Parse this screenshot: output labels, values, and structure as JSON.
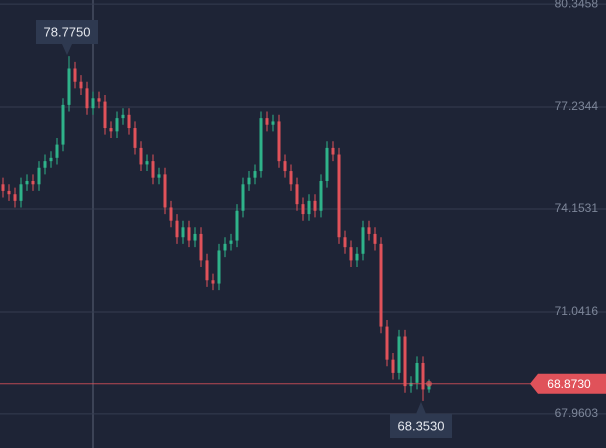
{
  "chart_data": {
    "type": "candlestick",
    "ylim": [
      66.93,
      80.47
    ],
    "yticks": [
      80.3458,
      77.2344,
      74.1531,
      71.0416,
      67.9603
    ],
    "grid": true,
    "up_color": "#2fb38a",
    "down_color": "#e0525a",
    "open": [
      74.9,
      74.7,
      74.6,
      74.4,
      74.9,
      75.0,
      74.9,
      75.4,
      75.6,
      75.7,
      76.1,
      77.3,
      78.4,
      78.0,
      77.8,
      77.2,
      77.5,
      77.4,
      76.6,
      76.5,
      76.9,
      77.0,
      76.6,
      76.0,
      75.5,
      75.6,
      75.1,
      75.2,
      74.2,
      73.8,
      73.3,
      73.6,
      73.2,
      73.4,
      72.6,
      72.0,
      71.9,
      72.9,
      73.1,
      73.2,
      74.1,
      74.9,
      75.1,
      75.3,
      76.9,
      76.7,
      76.8,
      75.6,
      75.3,
      74.9,
      74.3,
      74.0,
      74.4,
      74.1,
      75.0,
      76.0,
      75.8,
      73.3,
      73.0,
      72.6,
      72.8,
      73.6,
      73.4,
      73.1,
      70.6,
      69.6,
      69.2,
      70.3,
      68.8,
      68.9,
      69.5,
      68.7
    ],
    "high": [
      75.1,
      74.9,
      74.8,
      75.1,
      75.2,
      75.2,
      75.6,
      75.8,
      75.9,
      76.3,
      77.5,
      78.775,
      78.6,
      78.2,
      78.0,
      77.7,
      77.7,
      77.6,
      76.8,
      77.1,
      77.2,
      77.2,
      76.8,
      76.2,
      75.8,
      75.8,
      75.4,
      75.4,
      74.4,
      74.0,
      73.8,
      73.8,
      73.6,
      73.6,
      72.8,
      72.2,
      73.1,
      73.3,
      73.4,
      74.3,
      75.1,
      75.3,
      75.5,
      77.1,
      77.1,
      77.0,
      77.0,
      75.8,
      75.5,
      75.1,
      74.5,
      74.6,
      74.6,
      75.2,
      76.2,
      76.2,
      76.0,
      73.5,
      73.2,
      73.0,
      73.8,
      73.8,
      73.6,
      73.3,
      70.8,
      69.8,
      70.5,
      70.5,
      69.1,
      69.7,
      69.7,
      69.0
    ],
    "low": [
      74.5,
      74.4,
      74.2,
      74.2,
      74.7,
      74.7,
      74.7,
      75.2,
      75.4,
      75.5,
      75.9,
      77.1,
      77.8,
      77.6,
      77.0,
      77.0,
      77.2,
      76.4,
      76.3,
      76.3,
      76.7,
      76.4,
      75.8,
      75.3,
      75.3,
      74.9,
      74.9,
      74.0,
      73.6,
      73.1,
      73.1,
      73.0,
      73.0,
      72.4,
      71.8,
      71.7,
      71.7,
      72.7,
      72.9,
      73.0,
      73.9,
      74.7,
      74.9,
      75.1,
      76.5,
      76.5,
      75.4,
      75.1,
      74.7,
      74.1,
      73.8,
      73.8,
      73.9,
      73.9,
      74.8,
      75.6,
      73.1,
      72.8,
      72.4,
      72.4,
      72.6,
      73.2,
      72.9,
      70.4,
      69.4,
      69.0,
      69.0,
      68.6,
      68.6,
      68.7,
      68.353,
      68.6
    ],
    "close": [
      74.7,
      74.6,
      74.4,
      74.9,
      75.0,
      74.9,
      75.4,
      75.6,
      75.7,
      76.1,
      77.3,
      78.4,
      78.0,
      77.8,
      77.2,
      77.5,
      77.4,
      76.6,
      76.5,
      76.9,
      77.0,
      76.6,
      76.0,
      75.5,
      75.6,
      75.1,
      75.2,
      74.2,
      73.8,
      73.3,
      73.6,
      73.2,
      73.4,
      72.6,
      72.0,
      71.9,
      72.9,
      73.1,
      73.2,
      74.1,
      74.9,
      75.1,
      75.3,
      76.9,
      76.7,
      76.8,
      75.6,
      75.3,
      74.9,
      74.3,
      74.0,
      74.4,
      74.1,
      75.0,
      76.0,
      75.8,
      73.3,
      73.0,
      72.6,
      72.8,
      73.6,
      73.4,
      73.1,
      70.6,
      69.6,
      69.2,
      70.3,
      68.8,
      68.9,
      69.5,
      68.7,
      68.873
    ],
    "max_label": {
      "value": 78.775,
      "label": "78.7750"
    },
    "min_label": {
      "value": 68.353,
      "label": "68.3530"
    },
    "last_price": {
      "value": 68.873,
      "label": "68.8730"
    },
    "last_color": "#e0525a"
  }
}
